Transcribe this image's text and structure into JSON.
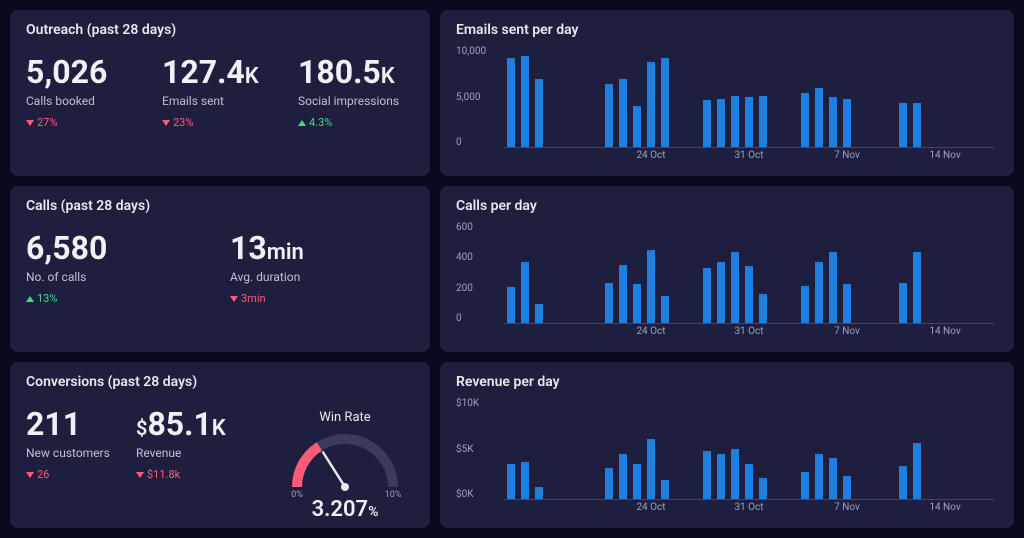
{
  "colors": {
    "page_bg": "#0a0a1f",
    "card_bg": "#1e1e3f",
    "text_primary": "#f0f0f5",
    "text_secondary": "#c0c0d0",
    "text_muted": "#a0a0c0",
    "bar": "#1e7fe0",
    "axis": "#444466",
    "delta_down": "#ff5a7a",
    "delta_up": "#3ddc84"
  },
  "outreach": {
    "title": "Outreach (past 28 days)",
    "metrics": [
      {
        "value": "5,026",
        "unit": "",
        "label": "Calls booked",
        "delta": "27%",
        "direction": "down"
      },
      {
        "value": "127.4",
        "unit": "K",
        "label": "Emails sent",
        "delta": "23%",
        "direction": "down"
      },
      {
        "value": "180.5",
        "unit": "K",
        "label": "Social impressions",
        "delta": "4.3%",
        "direction": "up"
      }
    ]
  },
  "calls": {
    "title": "Calls (past 28 days)",
    "metrics": [
      {
        "value": "6,580",
        "unit": "",
        "label": "No. of calls",
        "delta": "13%",
        "direction": "up"
      },
      {
        "value": "13",
        "unit": "min",
        "label": "Avg. duration",
        "delta": "3min",
        "direction": "down"
      }
    ]
  },
  "conversions": {
    "title": "Conversions (past 28 days)",
    "metrics": [
      {
        "value": "211",
        "unit": "",
        "label": "New customers",
        "delta": "26",
        "direction": "down"
      },
      {
        "value": "85.1",
        "unit": "K",
        "prefix": "$",
        "label": "Revenue",
        "delta": "$11.8k",
        "direction": "down"
      }
    ],
    "gauge": {
      "title": "Win Rate",
      "value_text": "3.207",
      "value_suffix": "%",
      "value": 3.207,
      "min": 0,
      "max": 10,
      "min_label": "0%",
      "max_label": "10%",
      "arc_bg": "#3a3a5a",
      "arc_fg": "#ff5a7a",
      "needle_color": "#e8e8f0"
    }
  },
  "emails_chart": {
    "title": "Emails sent per day",
    "type": "bar",
    "bar_color": "#1e7fe0",
    "ylim": [
      0,
      10000
    ],
    "ytick_labels": [
      "10,000",
      "5,000",
      "0"
    ],
    "x_tick_labels": [
      "",
      "24 Oct",
      "31 Oct",
      "7 Nov",
      "14 Nov"
    ],
    "week_size": 7,
    "gap_indices": [
      5,
      6
    ],
    "values": [
      9200,
      9400,
      7000,
      null,
      null,
      null,
      null,
      6500,
      7000,
      4200,
      8800,
      9200,
      null,
      null,
      4800,
      5000,
      5300,
      5200,
      5300,
      null,
      null,
      5600,
      6100,
      5200,
      5000,
      null,
      null,
      null,
      4500,
      4500,
      null,
      null,
      null,
      null,
      null
    ]
  },
  "calls_chart": {
    "title": "Calls per day",
    "type": "bar",
    "bar_color": "#1e7fe0",
    "ylim": [
      0,
      600
    ],
    "ytick_labels": [
      "600",
      "400",
      "200",
      "0"
    ],
    "x_tick_labels": [
      "",
      "24 Oct",
      "31 Oct",
      "7 Nov",
      "14 Nov"
    ],
    "week_size": 7,
    "gap_indices": [
      5,
      6
    ],
    "values": [
      220,
      380,
      120,
      null,
      null,
      null,
      null,
      250,
      360,
      240,
      450,
      170,
      null,
      null,
      340,
      380,
      440,
      350,
      180,
      null,
      null,
      230,
      380,
      440,
      240,
      null,
      null,
      null,
      250,
      440,
      null,
      null,
      null,
      null,
      null
    ]
  },
  "revenue_chart": {
    "title": "Revenue per day",
    "type": "bar",
    "bar_color": "#1e7fe0",
    "ylim": [
      0,
      10000
    ],
    "ytick_labels": [
      "$10K",
      "$5K",
      "$0K"
    ],
    "x_tick_labels": [
      "",
      "24 Oct",
      "31 Oct",
      "7 Nov",
      "14 Nov"
    ],
    "week_size": 7,
    "gap_indices": [
      5,
      6
    ],
    "values": [
      3600,
      3800,
      1200,
      null,
      null,
      null,
      null,
      3200,
      4600,
      3600,
      6200,
      2000,
      null,
      null,
      5000,
      4600,
      5200,
      3600,
      2200,
      null,
      null,
      2800,
      4600,
      4200,
      2400,
      null,
      null,
      null,
      3400,
      5800,
      null,
      null,
      null,
      null,
      null
    ]
  }
}
